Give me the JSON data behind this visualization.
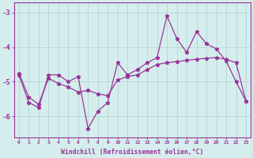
{
  "xlabel": "Windchill (Refroidissement éolien,°C)",
  "xlim": [
    -0.5,
    23.5
  ],
  "ylim": [
    -6.6,
    -2.7
  ],
  "yticks": [
    -6,
    -5,
    -4,
    -3
  ],
  "xticks": [
    0,
    1,
    2,
    3,
    4,
    5,
    6,
    7,
    8,
    9,
    10,
    11,
    12,
    13,
    14,
    15,
    16,
    17,
    18,
    19,
    20,
    21,
    22,
    23
  ],
  "bg_color": "#d5eeed",
  "line_color": "#993399",
  "grid_color": "#b8d8d8",
  "hourly_y": [
    -4.8,
    -5.6,
    -5.75,
    -4.8,
    -4.8,
    -5.0,
    -4.85,
    -6.35,
    -5.85,
    -5.6,
    -4.45,
    -4.8,
    -4.65,
    -4.45,
    -4.3,
    -3.1,
    -3.75,
    -4.15,
    -3.55,
    -3.9,
    -4.05,
    -4.4,
    -5.0,
    -5.55
  ],
  "trend_y": [
    -4.75,
    -5.45,
    -5.65,
    -4.9,
    -5.05,
    -5.15,
    -5.3,
    -5.25,
    -5.35,
    -5.4,
    -4.95,
    -4.85,
    -4.8,
    -4.65,
    -4.5,
    -4.45,
    -4.42,
    -4.38,
    -4.35,
    -4.32,
    -4.3,
    -4.35,
    -4.45,
    -5.55
  ]
}
